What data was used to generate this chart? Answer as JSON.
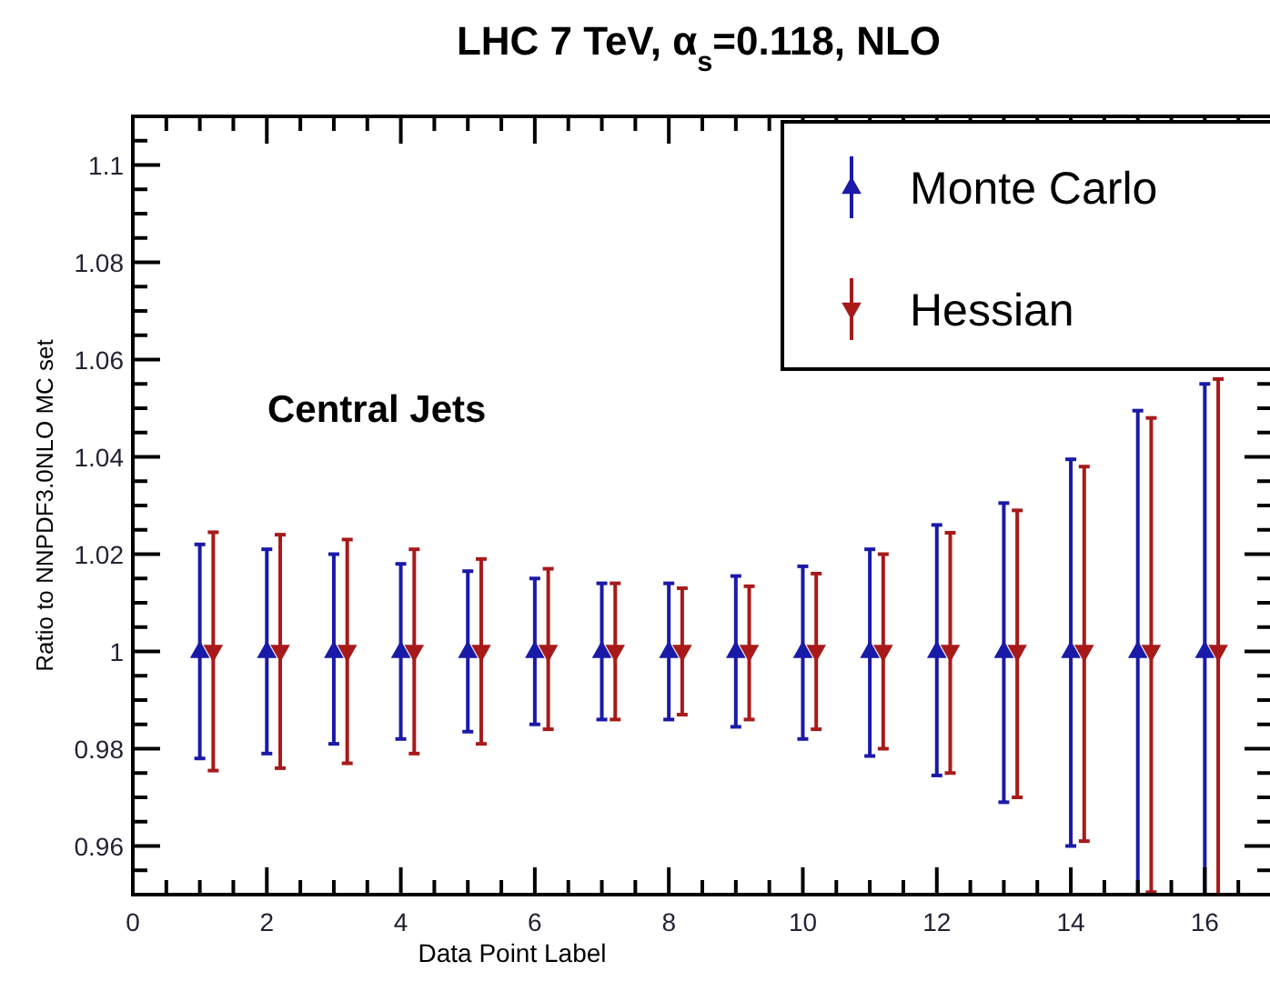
{
  "chart_data": {
    "type": "scatter",
    "title": "LHC 7 TeV, α$_{s}$=0.118, NLO",
    "xlabel": "Data Point Label",
    "ylabel": "Ratio to NNPDF3.0NLO MC set",
    "annotations": [
      "Central Jets"
    ],
    "xlim": [
      0,
      17
    ],
    "ylim": [
      0.95,
      1.11
    ],
    "xticks": [
      0,
      {
        "value": 0.5,
        "label": null
      },
      {
        "value": 1,
        "label": null
      },
      {
        "value": 1.5,
        "label": null
      },
      2,
      {
        "value": 2.5,
        "label": null
      },
      {
        "value": 3,
        "label": null
      },
      {
        "value": 3.5,
        "label": null
      },
      4,
      {
        "value": 4.5,
        "label": null
      },
      {
        "value": 5,
        "label": null
      },
      {
        "value": 5.5,
        "label": null
      },
      6,
      {
        "value": 6.5,
        "label": null
      },
      {
        "value": 7,
        "label": null
      },
      {
        "value": 7.5,
        "label": null
      },
      8,
      {
        "value": 8.5,
        "label": null
      },
      {
        "value": 9,
        "label": null
      },
      {
        "value": 9.5,
        "label": null
      },
      10,
      {
        "value": 10.5,
        "label": null
      },
      {
        "value": 11,
        "label": null
      },
      {
        "value": 11.5,
        "label": null
      },
      12,
      {
        "value": 12.5,
        "label": null
      },
      {
        "value": 13,
        "label": null
      },
      {
        "value": 13.5,
        "label": null
      },
      14,
      {
        "value": 14.5,
        "label": null
      },
      {
        "value": 15,
        "label": null
      },
      {
        "value": 15.5,
        "label": null
      },
      16,
      {
        "value": 16.5,
        "label": null
      }
    ],
    "yticks": [
      {
        "value": 0.95,
        "label": null
      },
      {
        "value": 0.955,
        "label": null
      },
      0.96,
      {
        "value": 0.965,
        "label": null
      },
      {
        "value": 0.97,
        "label": null
      },
      {
        "value": 0.975,
        "label": null
      },
      0.98,
      {
        "value": 0.985,
        "label": null
      },
      {
        "value": 0.99,
        "label": null
      },
      {
        "value": 0.995,
        "label": null
      },
      1,
      {
        "value": 1.005,
        "label": null
      },
      {
        "value": 1.01,
        "label": null
      },
      {
        "value": 1.015,
        "label": null
      },
      1.02,
      {
        "value": 1.025,
        "label": null
      },
      {
        "value": 1.03,
        "label": null
      },
      {
        "value": 1.035,
        "label": null
      },
      1.04,
      {
        "value": 1.045,
        "label": null
      },
      {
        "value": 1.05,
        "label": null
      },
      {
        "value": 1.055,
        "label": null
      },
      1.06,
      {
        "value": 1.065,
        "label": null
      },
      {
        "value": 1.07,
        "label": null
      },
      {
        "value": 1.075,
        "label": null
      },
      1.08,
      {
        "value": 1.085,
        "label": null
      },
      {
        "value": 1.09,
        "label": null
      },
      {
        "value": 1.095,
        "label": null
      },
      1.1,
      {
        "value": 1.105,
        "label": null
      }
    ],
    "grid": false,
    "legend": "top right",
    "series": [
      {
        "name": "Monte Carlo",
        "color": "#1a1aa8",
        "marker": "triangle",
        "x": [
          1,
          2,
          3,
          4,
          5,
          6,
          7,
          8,
          9,
          10,
          11,
          12,
          13,
          14,
          15,
          16
        ],
        "values": [
          1,
          1,
          1,
          1,
          1,
          1,
          1,
          1,
          1,
          1,
          1,
          1,
          1,
          1,
          1,
          1
        ],
        "errors": [
          0.022,
          0.021,
          [
            0.981,
            1.02
          ],
          0.018,
          0.0165,
          0.015,
          0.014,
          0.014,
          0.0155,
          [
            0.982,
            1.0175
          ],
          [
            0.9785,
            1.021
          ],
          [
            0.9745,
            1.026
          ],
          [
            0.969,
            1.0305
          ],
          [
            0.96,
            1.0395
          ],
          [
            0.95,
            1.0495
          ],
          [
            0.95,
            1.055
          ]
        ]
      },
      {
        "name": "Hessian",
        "color": "#a81a1a",
        "marker": "triangle-down",
        "x": [
          1.2,
          2.2,
          3.2,
          4.2,
          5.2,
          6.2,
          7.2,
          8.2,
          9.2,
          10.2,
          11.2,
          12.2,
          13.2,
          14.2,
          15.2,
          16.2
        ],
        "values": [
          1,
          1,
          1,
          1,
          1,
          1,
          1,
          1,
          1,
          1,
          1,
          1,
          1,
          1,
          1,
          1
        ],
        "errors": [
          0.0245,
          0.024,
          0.023,
          0.021,
          0.019,
          [
            0.984,
            1.017
          ],
          0.014,
          0.013,
          [
            0.986,
            1.0134
          ],
          0.016,
          0.02,
          [
            0.975,
            1.0244
          ],
          [
            0.97,
            1.029
          ],
          [
            0.961,
            1.038
          ],
          [
            0.9505,
            1.048
          ],
          [
            0.95,
            1.056
          ]
        ]
      }
    ]
  }
}
